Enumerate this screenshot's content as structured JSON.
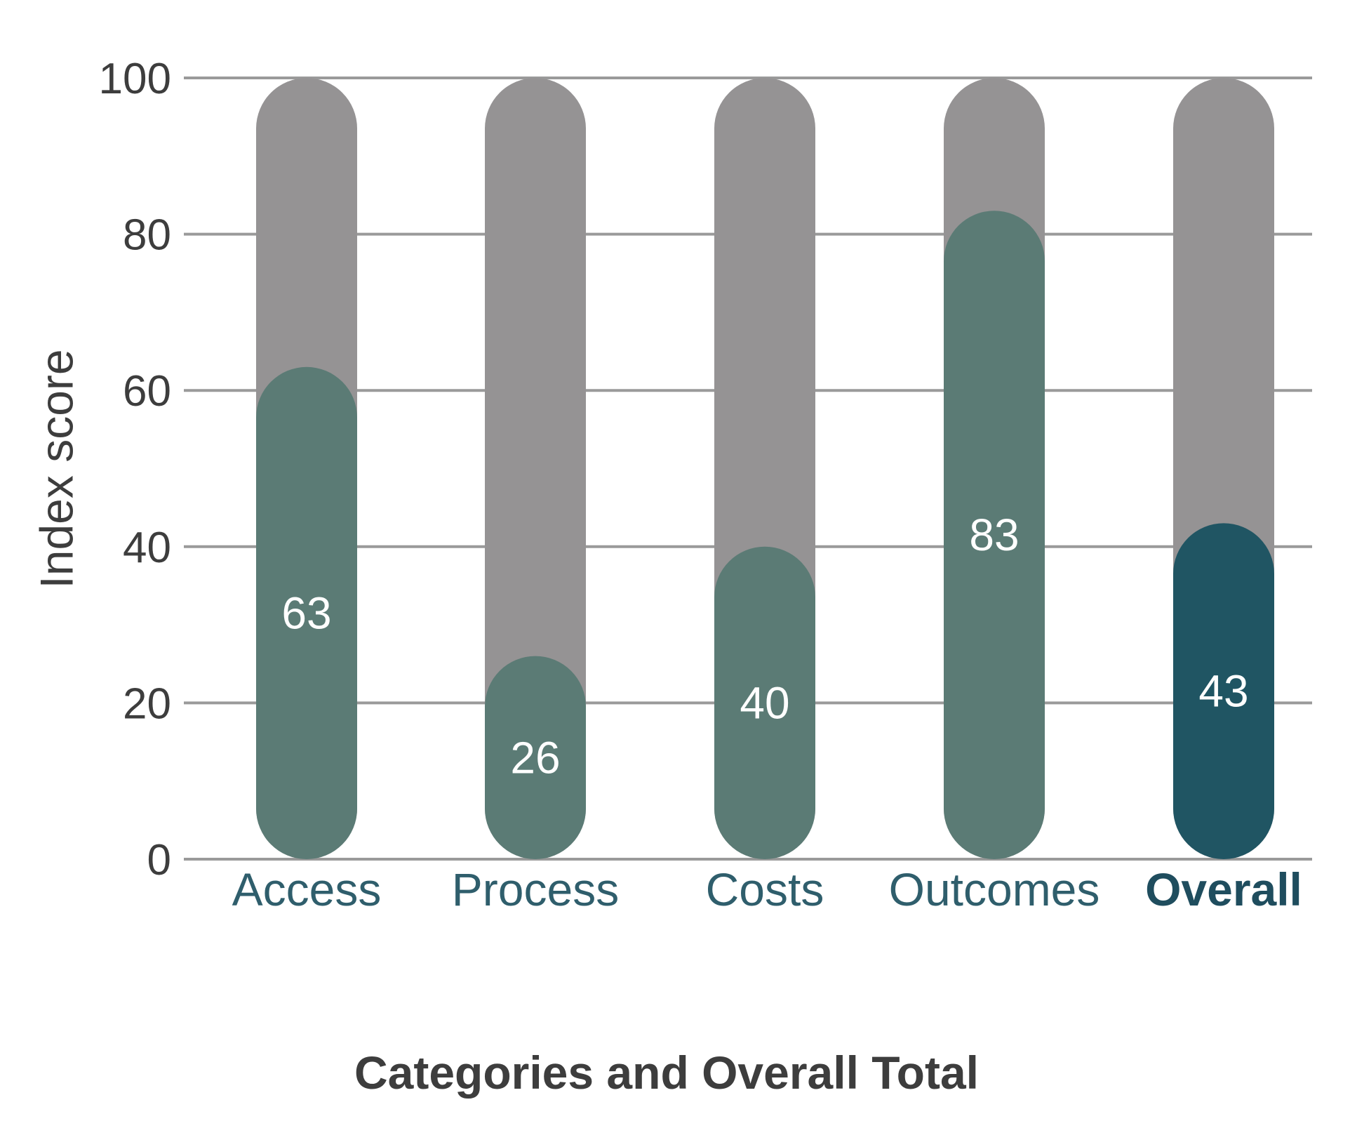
{
  "chart_data": {
    "type": "bar",
    "categories": [
      "Access",
      "Process",
      "Costs",
      "Outcomes",
      "Overall"
    ],
    "values": [
      63,
      26,
      40,
      83,
      43
    ],
    "value_labels": [
      "63",
      "26",
      "40",
      "83",
      "43"
    ],
    "ylabel": "Index score",
    "xlabel": "Categories and Overall Total",
    "ylim": [
      0,
      100
    ],
    "yticks": [
      0,
      20,
      40,
      60,
      80,
      100
    ],
    "ytick_labels": [
      "0",
      "20",
      "40",
      "60",
      "80",
      "100"
    ],
    "grid": true,
    "background_bar_max": 100,
    "emphasized_category": "Overall",
    "colors": {
      "background_bar": "#959394",
      "value_bar": "#5b7b75",
      "emphasized_bar": "#205563",
      "category_label": "#2f5e6c",
      "emphasized_label": "#1f4d5e",
      "gridline": "#9a9a9a",
      "axis_text": "#3d3d3d",
      "value_label": "#ffffff"
    }
  }
}
